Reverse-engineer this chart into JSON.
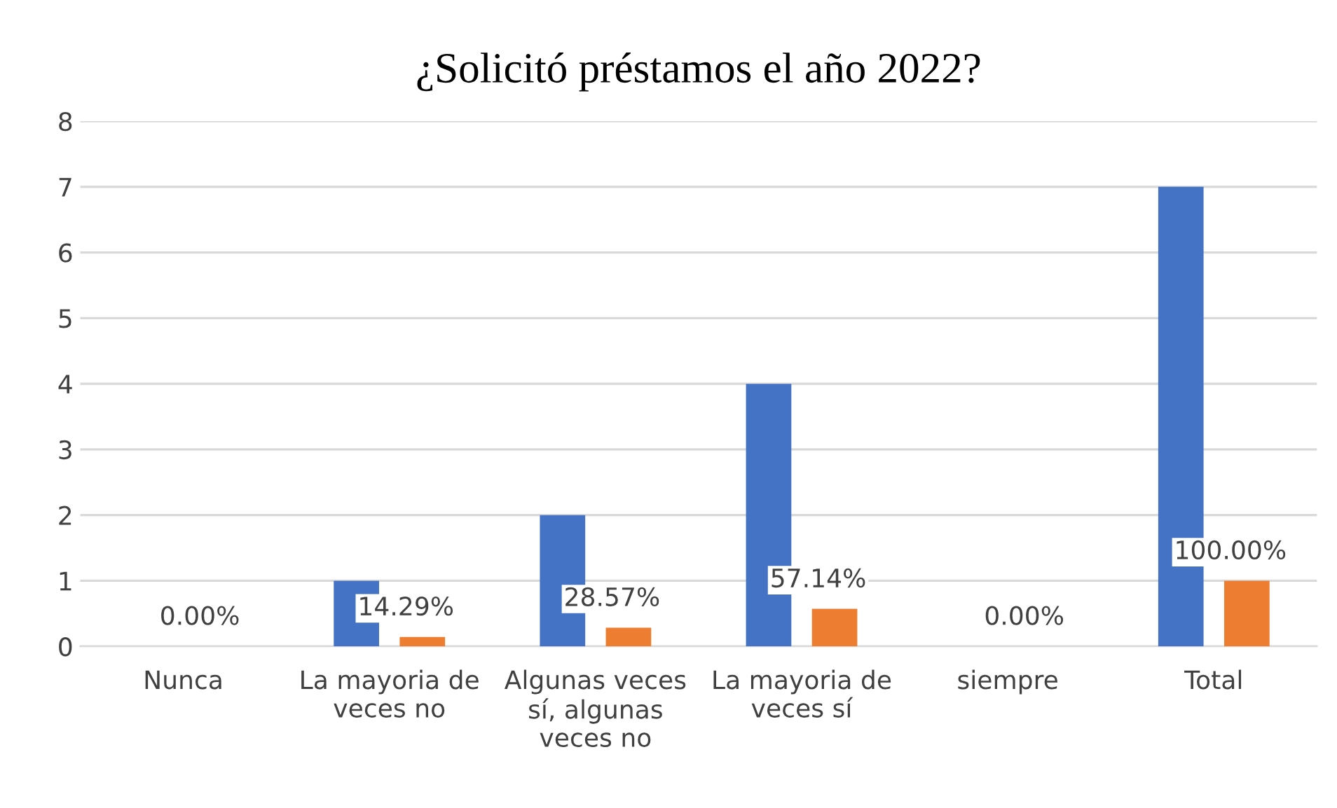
{
  "chart_data": {
    "type": "bar",
    "title": "¿Solicitó préstamos el año 2022?",
    "categories": [
      "Nunca",
      "La mayoria de\nveces no",
      "Algunas veces\nsí, algunas\nveces no",
      "La mayoria de\nveces sí",
      "siempre",
      "Total"
    ],
    "series": [
      {
        "color": "#4472c4",
        "values": [
          0,
          1,
          2,
          4,
          0,
          7
        ]
      },
      {
        "color": "#ed7d31",
        "values": [
          0,
          0.1429,
          0.2857,
          0.5714,
          0,
          1
        ],
        "value_labels": [
          "0.00%",
          "14.29%",
          "28.57%",
          "57.14%",
          "0.00%",
          "100.00%"
        ]
      }
    ],
    "ylim": [
      0,
      8
    ],
    "yticks": [
      0,
      1,
      2,
      3,
      4,
      5,
      6,
      7,
      8
    ],
    "grid": "y"
  }
}
